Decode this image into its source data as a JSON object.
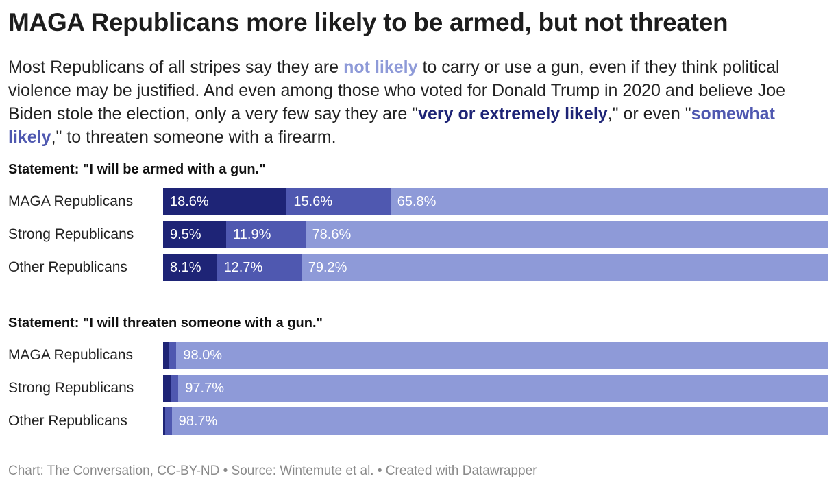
{
  "title": "MAGA Republicans more likely to be armed, but not threaten",
  "subtitle": {
    "p1": "Most Republicans of all stripes say they are ",
    "not_likely": "not likely",
    "p2": " to carry or use a gun, even if they think political violence may be justified. And even among those who voted for Donald Trump in 2020 and believe Joe Biden stole the election, only a very few say they are \"",
    "very_likely": "very or extremely likely",
    "p3": ",\" or even \"",
    "somewhat_likely": "somewhat likely",
    "p4": ",\" to threaten someone with a firearm."
  },
  "colors": {
    "very_or_extremely_likely": "#1e2476",
    "somewhat_likely": "#4f58b0",
    "not_likely": "#8e9ad8"
  },
  "chart_data": [
    {
      "type": "bar",
      "orientation": "horizontal-stacked",
      "title": "Statement: \"I will be armed with a gun.\"",
      "categories": [
        "MAGA Republicans",
        "Strong Republicans",
        "Other Republicans"
      ],
      "series": [
        {
          "key": "very_or_extremely_likely",
          "values": [
            18.6,
            9.5,
            8.1
          ],
          "labels": [
            "18.6%",
            "9.5%",
            "8.1%"
          ]
        },
        {
          "key": "somewhat_likely",
          "values": [
            15.6,
            11.9,
            12.7
          ],
          "labels": [
            "15.6%",
            "11.9%",
            "12.7%"
          ]
        },
        {
          "key": "not_likely",
          "values": [
            65.8,
            78.6,
            79.2
          ],
          "labels": [
            "65.8%",
            "78.6%",
            "79.2%"
          ]
        }
      ],
      "xlim": [
        0,
        100
      ]
    },
    {
      "type": "bar",
      "orientation": "horizontal-stacked",
      "title": "Statement: \"I will threaten someone with a gun.\"",
      "categories": [
        "MAGA Republicans",
        "Strong Republicans",
        "Other Republicans"
      ],
      "series": [
        {
          "key": "very_or_extremely_likely",
          "values": [
            0.8,
            1.2,
            0.3
          ],
          "labels": [
            "",
            "",
            ""
          ]
        },
        {
          "key": "somewhat_likely",
          "values": [
            1.2,
            1.1,
            1.0
          ],
          "labels": [
            "",
            "",
            ""
          ]
        },
        {
          "key": "not_likely",
          "values": [
            98.0,
            97.7,
            98.7
          ],
          "labels": [
            "98.0%",
            "97.7%",
            "98.7%"
          ]
        }
      ],
      "xlim": [
        0,
        100
      ]
    }
  ],
  "footer": "Chart: The Conversation, CC-BY-ND • Source: Wintemute et al. • Created with Datawrapper"
}
